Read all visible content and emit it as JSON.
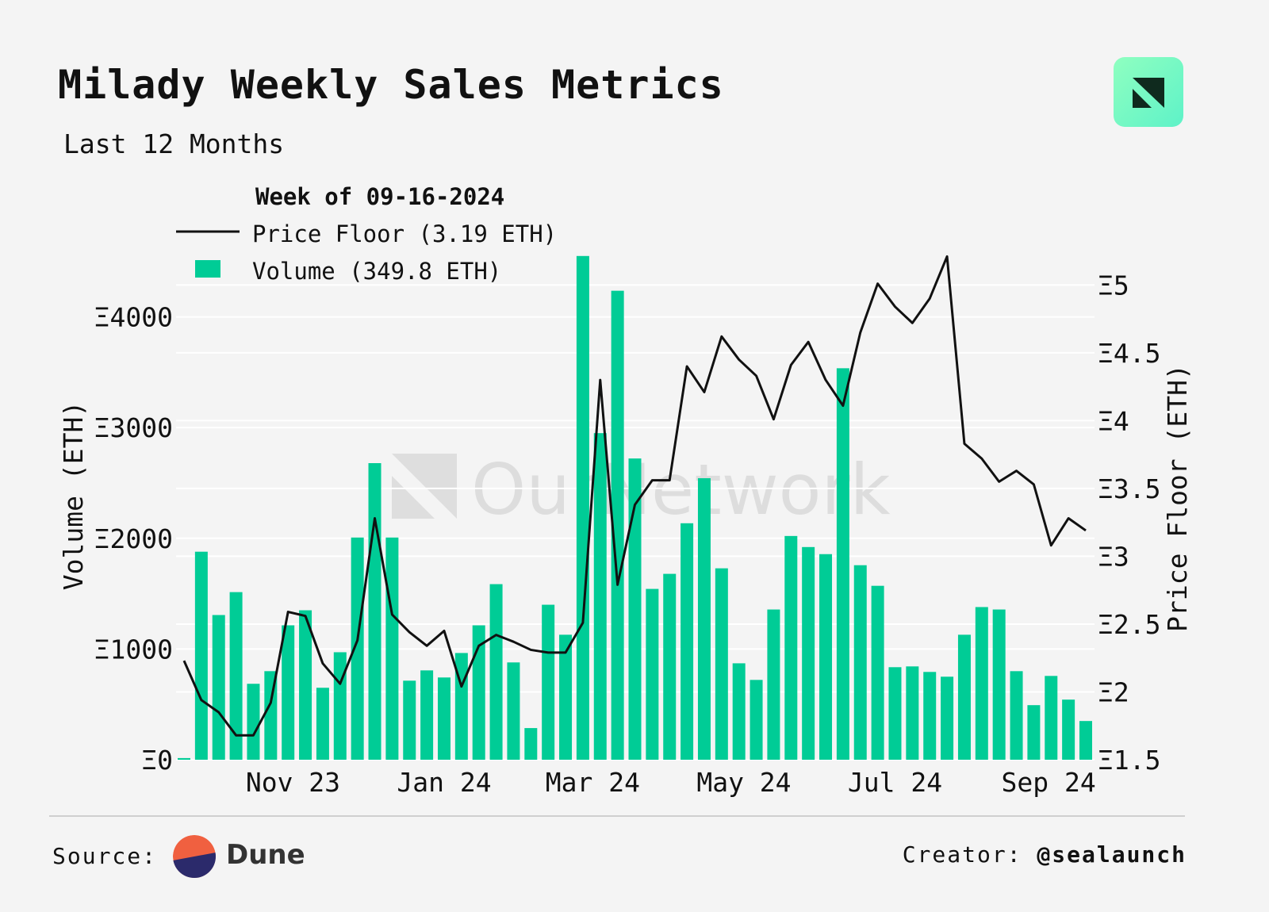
{
  "header": {
    "title": "Milady Weekly Sales Metrics",
    "subtitle": "Last 12 Months"
  },
  "footer": {
    "source_label": "Source:",
    "source_name": "Dune",
    "creator_label": "Creator:",
    "creator_handle": "@sealaunch"
  },
  "watermark": "OurNetwork",
  "colors": {
    "volume": "#00cc96",
    "price": "#111111",
    "background": "#f4f4f4"
  },
  "chart_data": {
    "type": "bar+line",
    "legend": {
      "title": "Week of 09-16-2024",
      "placement": "top-left",
      "items": [
        "Price Floor (3.19 ETH)",
        "Volume (349.8 ETH)"
      ]
    },
    "xlabel": "",
    "ylabel_left": "Volume (ETH)",
    "ylabel_right": "Price Floor (ETH)",
    "x_ticks": [
      {
        "label": "Nov 23",
        "date": "2023-11-01"
      },
      {
        "label": "Jan 24",
        "date": "2024-01-01"
      },
      {
        "label": "Mar 24",
        "date": "2024-03-01"
      },
      {
        "label": "May 24",
        "date": "2024-05-01"
      },
      {
        "label": "Jul 24",
        "date": "2024-07-01"
      },
      {
        "label": "Sep 24",
        "date": "2024-09-01"
      }
    ],
    "y_left_ticks": [
      "Ξ0",
      "Ξ1000",
      "Ξ2000",
      "Ξ3000",
      "Ξ4000"
    ],
    "y_left_values": [
      0,
      1000,
      2000,
      3000,
      4000
    ],
    "ylim_left": [
      0,
      4570
    ],
    "y_right_ticks": [
      "Ξ1.5",
      "Ξ2",
      "Ξ2.5",
      "Ξ3",
      "Ξ3.5",
      "Ξ4",
      "Ξ4.5",
      "Ξ5"
    ],
    "y_right_values": [
      1.5,
      2,
      2.5,
      3,
      3.5,
      4,
      4.5,
      5
    ],
    "ylim_right": [
      1.5,
      5.23
    ],
    "grid": true,
    "x_start": "2023-09-18",
    "x_step_days": 7,
    "series": [
      {
        "name": "Volume",
        "type": "bar",
        "axis": "left",
        "values": [
          15,
          1879,
          1307,
          1514,
          686,
          800,
          1214,
          1350,
          650,
          971,
          2007,
          2679,
          2007,
          714,
          807,
          743,
          964,
          1214,
          1586,
          879,
          286,
          1400,
          1129,
          4550,
          2950,
          4236,
          2721,
          1543,
          1679,
          2136,
          2543,
          1729,
          871,
          721,
          1357,
          2021,
          1921,
          1857,
          3536,
          1757,
          1571,
          836,
          843,
          793,
          750,
          1129,
          1379,
          1357,
          800,
          493,
          757,
          543,
          349.8
        ]
      },
      {
        "name": "Price Floor",
        "type": "line",
        "axis": "right",
        "values": [
          2.23,
          1.94,
          1.85,
          1.68,
          1.68,
          1.92,
          2.59,
          2.56,
          2.21,
          2.06,
          2.38,
          3.28,
          2.57,
          2.44,
          2.34,
          2.45,
          2.04,
          2.34,
          2.42,
          2.37,
          2.31,
          2.29,
          2.29,
          2.51,
          4.3,
          2.79,
          3.38,
          3.56,
          3.56,
          4.4,
          4.21,
          4.62,
          4.45,
          4.33,
          4.01,
          4.41,
          4.58,
          4.3,
          4.11,
          4.65,
          5.01,
          4.84,
          4.72,
          4.9,
          5.21,
          3.83,
          3.72,
          3.55,
          3.63,
          3.53,
          3.08,
          3.28,
          3.19
        ]
      }
    ]
  }
}
